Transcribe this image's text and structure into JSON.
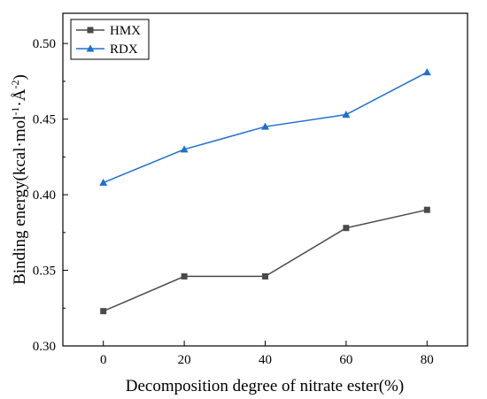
{
  "chart_data": {
    "type": "line",
    "xlabel": "Decomposition degree of nitrate ester(%)",
    "ylabel": {
      "prefix": "Binding energy(kcal·mol",
      "sup1": "-1",
      "mid": "·Å",
      "sup2": "-2",
      "suffix": ")"
    },
    "x": [
      0,
      20,
      40,
      60,
      80
    ],
    "xlim": [
      -10,
      90
    ],
    "ylim": [
      0.3,
      0.52
    ],
    "xticks": [
      "0",
      "20",
      "40",
      "60",
      "80"
    ],
    "yticks": [
      "0.30",
      "0.35",
      "0.40",
      "0.45",
      "0.50"
    ],
    "grid": false,
    "legend_position": "top-left",
    "series": [
      {
        "name": "HMX",
        "values": [
          0.323,
          0.346,
          0.346,
          0.378,
          0.39
        ],
        "color": "#4a4a4a",
        "marker": "square"
      },
      {
        "name": "RDX",
        "values": [
          0.408,
          0.43,
          0.445,
          0.453,
          0.481
        ],
        "color": "#1f6fd1",
        "marker": "triangle"
      }
    ]
  }
}
